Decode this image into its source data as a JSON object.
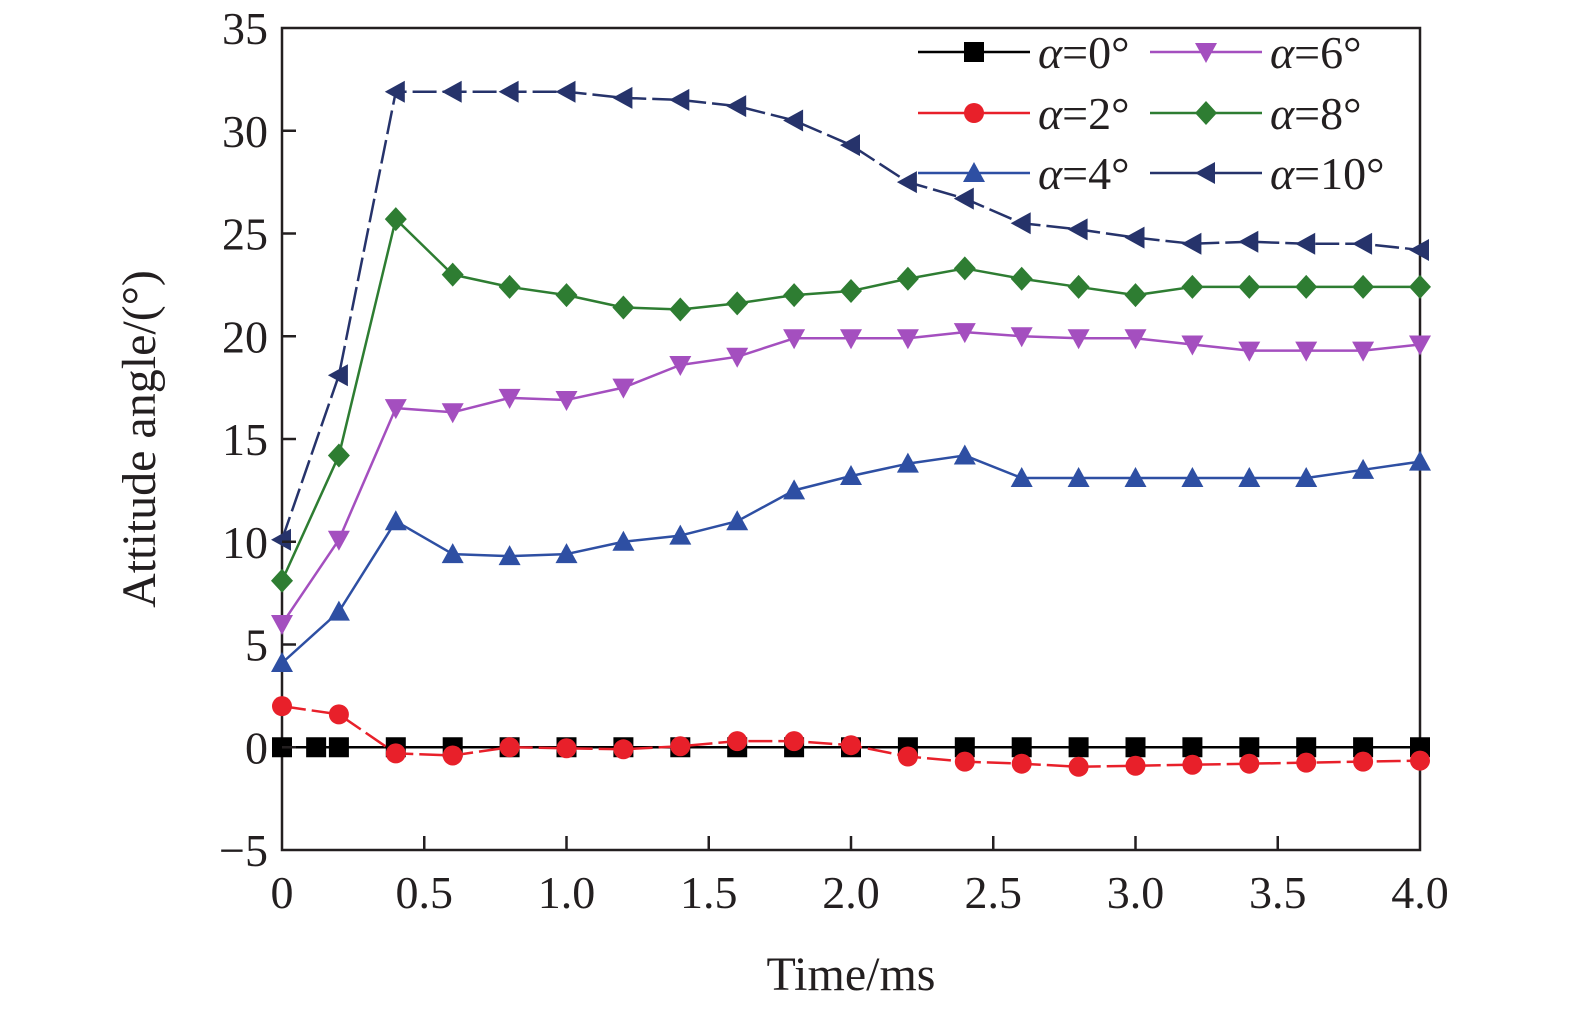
{
  "chart_data": {
    "type": "line",
    "xlabel": "Time/ms",
    "ylabel": "Attitude angle/(°)",
    "xlim": [
      0,
      4.0
    ],
    "ylim": [
      -5,
      35
    ],
    "xticks": [
      0,
      0.5,
      1.0,
      1.5,
      2.0,
      2.5,
      3.0,
      3.5,
      4.0
    ],
    "xtick_labels": [
      "0",
      "0.5",
      "1.0",
      "1.5",
      "2.0",
      "2.5",
      "3.0",
      "3.5",
      "4.0"
    ],
    "yticks": [
      -5,
      0,
      5,
      10,
      15,
      20,
      25,
      30,
      35
    ],
    "ytick_labels": [
      "−5",
      "0",
      "5",
      "10",
      "15",
      "20",
      "25",
      "30",
      "35"
    ],
    "grid": false,
    "legend_position": "top-right",
    "series": [
      {
        "name": "α=0°",
        "name_var": "α",
        "name_rest": "=0°",
        "color": "#000000",
        "marker": "square",
        "dash": "solid",
        "x": [
          0,
          0.12,
          0.2,
          0.4,
          0.6,
          0.8,
          1.0,
          1.2,
          1.4,
          1.6,
          1.8,
          2.0,
          2.2,
          2.4,
          2.6,
          2.8,
          3.0,
          3.2,
          3.4,
          3.6,
          3.8,
          4.0
        ],
        "y": [
          0,
          0,
          0,
          0,
          0,
          0,
          0,
          0,
          0,
          0,
          0,
          0,
          0,
          0,
          0,
          0,
          0,
          0,
          0,
          0,
          0,
          0
        ]
      },
      {
        "name": "α=2°",
        "name_var": "α",
        "name_rest": "=2°",
        "color": "#e8202a",
        "marker": "circle",
        "dash": "dashed",
        "x": [
          0,
          0.2,
          0.4,
          0.6,
          0.8,
          1.0,
          1.2,
          1.4,
          1.6,
          1.8,
          2.0,
          2.2,
          2.4,
          2.6,
          2.8,
          3.0,
          3.2,
          3.4,
          3.6,
          3.8,
          4.0
        ],
        "y": [
          2.0,
          1.6,
          -0.3,
          -0.4,
          0.0,
          -0.05,
          -0.1,
          0.05,
          0.3,
          0.3,
          0.1,
          -0.45,
          -0.7,
          -0.8,
          -0.95,
          -0.9,
          -0.85,
          -0.8,
          -0.75,
          -0.7,
          -0.65
        ]
      },
      {
        "name": "α=4°",
        "name_var": "α",
        "name_rest": "=4°",
        "color": "#2e4fa3",
        "marker": "triangle-up",
        "dash": "solid",
        "x": [
          0,
          0.2,
          0.4,
          0.6,
          0.8,
          1.0,
          1.2,
          1.4,
          1.6,
          1.8,
          2.0,
          2.2,
          2.4,
          2.6,
          2.8,
          3.0,
          3.2,
          3.4,
          3.6,
          3.8,
          4.0
        ],
        "y": [
          4.1,
          6.6,
          11.0,
          9.4,
          9.3,
          9.4,
          10.0,
          10.3,
          11.0,
          12.5,
          13.2,
          13.8,
          14.2,
          13.1,
          13.1,
          13.1,
          13.1,
          13.1,
          13.1,
          13.5,
          13.9
        ]
      },
      {
        "name": "α=6°",
        "name_var": "α",
        "name_rest": "=6°",
        "color": "#a44fbf",
        "marker": "triangle-down",
        "dash": "solid",
        "x": [
          0,
          0.2,
          0.4,
          0.6,
          0.8,
          1.0,
          1.2,
          1.4,
          1.6,
          1.8,
          2.0,
          2.2,
          2.4,
          2.6,
          2.8,
          3.0,
          3.2,
          3.4,
          3.6,
          3.8,
          4.0
        ],
        "y": [
          6.0,
          10.1,
          16.5,
          16.3,
          17.0,
          16.9,
          17.5,
          18.6,
          19.0,
          19.9,
          19.9,
          19.9,
          20.2,
          20.0,
          19.9,
          19.9,
          19.6,
          19.3,
          19.3,
          19.3,
          19.6
        ]
      },
      {
        "name": "α=8°",
        "name_var": "α",
        "name_rest": "=8°",
        "color": "#2e7d32",
        "marker": "diamond",
        "dash": "solid",
        "x": [
          0,
          0.2,
          0.4,
          0.6,
          0.8,
          1.0,
          1.2,
          1.4,
          1.6,
          1.8,
          2.0,
          2.2,
          2.4,
          2.6,
          2.8,
          3.0,
          3.2,
          3.4,
          3.6,
          3.8,
          4.0
        ],
        "y": [
          8.1,
          14.2,
          25.7,
          23.0,
          22.4,
          22.0,
          21.4,
          21.3,
          21.6,
          22.0,
          22.2,
          22.8,
          23.3,
          22.8,
          22.4,
          22.0,
          22.4,
          22.4,
          22.4,
          22.4,
          22.4
        ]
      },
      {
        "name": "α=10°",
        "name_var": "α",
        "name_rest": "=10°",
        "color": "#26336b",
        "marker": "triangle-left",
        "dash": "dashed",
        "x": [
          0,
          0.2,
          0.4,
          0.6,
          0.8,
          1.0,
          1.2,
          1.4,
          1.6,
          1.8,
          2.0,
          2.2,
          2.4,
          2.6,
          2.8,
          3.0,
          3.2,
          3.4,
          3.6,
          3.8,
          4.0
        ],
        "y": [
          10.1,
          18.1,
          31.9,
          31.9,
          31.9,
          31.9,
          31.6,
          31.5,
          31.2,
          30.5,
          29.3,
          27.5,
          26.7,
          25.5,
          25.2,
          24.8,
          24.5,
          24.6,
          24.5,
          24.5,
          24.2
        ]
      }
    ]
  }
}
